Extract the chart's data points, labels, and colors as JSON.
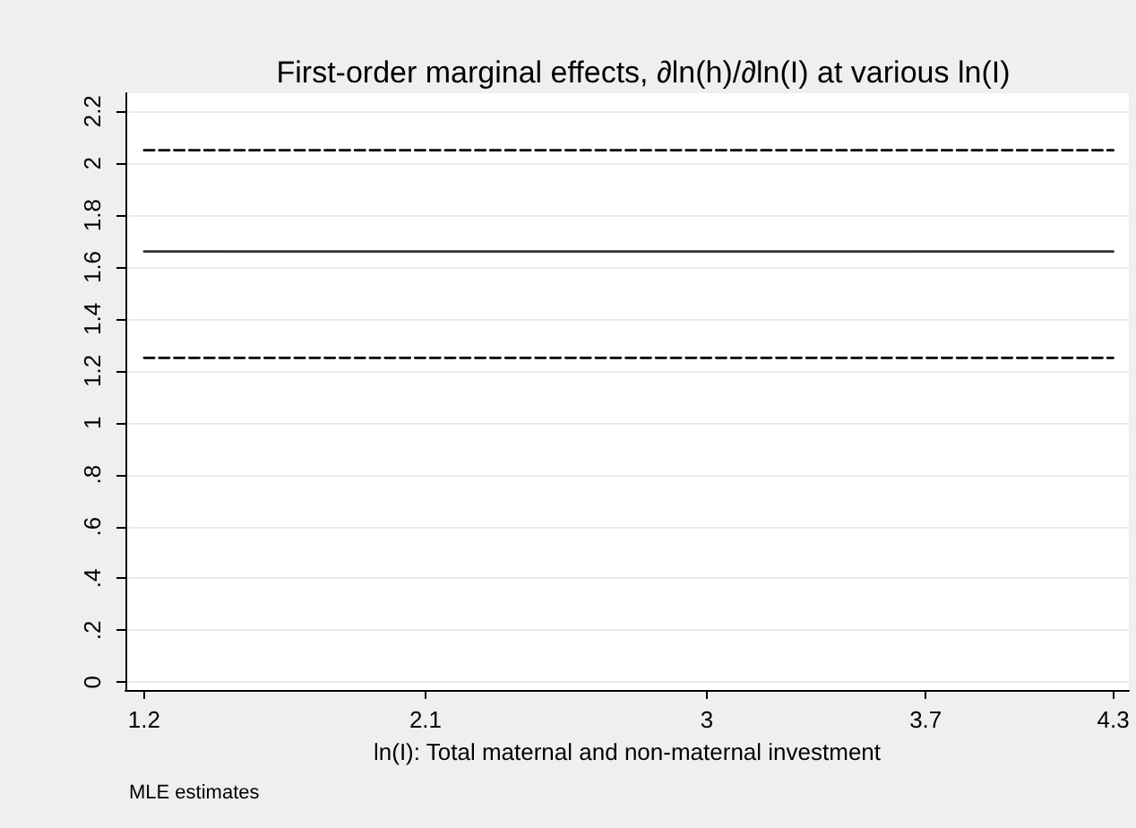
{
  "chart_data": {
    "type": "line",
    "title": "First-order marginal effects, ∂ln(h)/∂ln(I) at various ln(I)",
    "xlabel": "ln(I): Total maternal and non-maternal investment",
    "annotations": [
      "MLE estimates"
    ],
    "x": [
      1.2,
      4.3
    ],
    "series": [
      {
        "color": "#000000",
        "values": [
          2.05,
          2.05
        ],
        "line_style": "dashed"
      },
      {
        "color": "#333333",
        "values": [
          1.66,
          1.66
        ],
        "line_style": "solid"
      },
      {
        "color": "#000000",
        "values": [
          1.25,
          1.25
        ],
        "line_style": "dashed"
      }
    ],
    "xlim": [
      1.14,
      4.35
    ],
    "xticks": [
      1.2,
      2.1,
      3,
      3.7,
      4.3
    ],
    "ylim": [
      -0.03,
      2.27
    ],
    "yticks": [
      0,
      {
        "value": 0.2,
        "label": ".2"
      },
      {
        "value": 0.4,
        "label": ".4"
      },
      {
        "value": 0.6,
        "label": ".6"
      },
      {
        "value": 0.8,
        "label": ".8"
      },
      1,
      1.2,
      1.4,
      1.6,
      1.8,
      2,
      2.2
    ],
    "grid": "y",
    "marker": "none"
  }
}
